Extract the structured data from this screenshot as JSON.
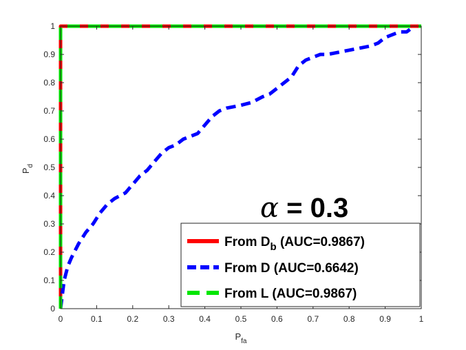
{
  "chart_data": {
    "type": "line",
    "title": "",
    "xlabel": {
      "main": "P",
      "sub": "fa"
    },
    "ylabel": {
      "main": "P",
      "sub": "d"
    },
    "xlim": [
      0,
      1
    ],
    "ylim": [
      0,
      1
    ],
    "xticks": [
      "0",
      "0.1",
      "0.2",
      "0.3",
      "0.4",
      "0.5",
      "0.6",
      "0.7",
      "0.8",
      "0.9",
      "1"
    ],
    "yticks": [
      "0",
      "0.1",
      "0.2",
      "0.3",
      "0.4",
      "0.5",
      "0.6",
      "0.7",
      "0.8",
      "0.9",
      "1"
    ],
    "grid": false,
    "annotation": {
      "symbol": "α",
      "text": " = 0.3"
    },
    "legend_position": "bottom-right",
    "series": [
      {
        "id": "Db",
        "label_main": "From D",
        "label_sub": "b",
        "label_tail": " (AUC=0.9867)",
        "color": "#ff0000",
        "dash": "solid",
        "x": [
          0,
          0,
          0,
          1
        ],
        "y": [
          0,
          0.97,
          1,
          1
        ]
      },
      {
        "id": "D",
        "label_main": "From D",
        "label_sub": "",
        "label_tail": "   (AUC=0.6642)",
        "color": "#0000ff",
        "dash": "dashed",
        "x": [
          0,
          0.01,
          0.02,
          0.03,
          0.05,
          0.07,
          0.09,
          0.11,
          0.13,
          0.15,
          0.18,
          0.2,
          0.22,
          0.24,
          0.26,
          0.28,
          0.3,
          0.32,
          0.34,
          0.36,
          0.38,
          0.4,
          0.42,
          0.44,
          0.46,
          0.5,
          0.53,
          0.56,
          0.58,
          0.6,
          0.62,
          0.64,
          0.66,
          0.68,
          0.7,
          0.72,
          0.74,
          0.78,
          0.82,
          0.86,
          0.88,
          0.9,
          0.92,
          0.94,
          0.96,
          0.98
        ],
        "y": [
          0,
          0.1,
          0.15,
          0.18,
          0.23,
          0.27,
          0.3,
          0.34,
          0.37,
          0.39,
          0.41,
          0.44,
          0.47,
          0.49,
          0.52,
          0.55,
          0.57,
          0.58,
          0.6,
          0.61,
          0.62,
          0.65,
          0.68,
          0.7,
          0.71,
          0.72,
          0.73,
          0.75,
          0.76,
          0.78,
          0.8,
          0.82,
          0.86,
          0.88,
          0.89,
          0.9,
          0.9,
          0.91,
          0.92,
          0.93,
          0.94,
          0.96,
          0.97,
          0.98,
          0.98,
          1.0
        ]
      },
      {
        "id": "L",
        "label_main": "From L",
        "label_sub": "",
        "label_tail": "   (AUC=0.9867)",
        "color": "#00e600",
        "dash": "dashed",
        "x": [
          0,
          0,
          0,
          1
        ],
        "y": [
          0,
          0.97,
          1,
          1
        ]
      }
    ]
  }
}
